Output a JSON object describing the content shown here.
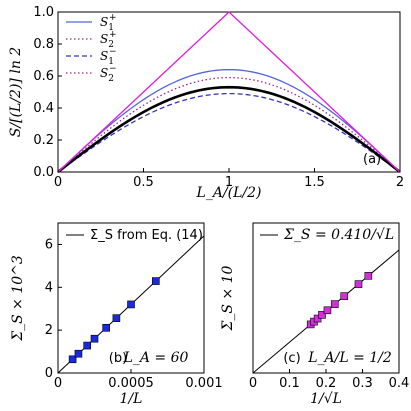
{
  "chart_data": [
    {
      "type": "line",
      "panel_label": "(a)",
      "xlabel": "L_A/(L/2)",
      "ylabel": "S/[(L/2)] ln 2",
      "xlim": [
        0,
        2
      ],
      "ylim": [
        0,
        1
      ],
      "xticks": [
        "0",
        "0.5",
        "1",
        "1.5",
        "2"
      ],
      "yticks": [
        "0.0",
        "0.2",
        "0.4",
        "0.6",
        "0.8",
        "1.0"
      ],
      "legend_position": "top-left",
      "colors": {
        "triangle": "#e020e0",
        "blue": "#5566dd",
        "purple": "#a0208a",
        "black": "#000000"
      },
      "series": [
        {
          "name": "S1+",
          "style": "solid",
          "color": "#5566dd",
          "peak": 0.64
        },
        {
          "name": "S2+",
          "style": "dotted",
          "color": "#a0208a",
          "peak": 0.59
        },
        {
          "name": "S1−",
          "style": "dashed",
          "color": "#3333bb",
          "peak": 0.49
        },
        {
          "name": "S2−",
          "style": "dotted",
          "color": "#a0208a",
          "peak": 0.53
        },
        {
          "name": "",
          "style": "solid-thick",
          "color": "#000000",
          "peak": 0.53
        },
        {
          "name": "",
          "style": "solid",
          "color": "#e020e0",
          "peak": 1.0
        }
      ],
      "legend": [
        {
          "base": "S",
          "sub": "1",
          "sup": "+",
          "style": "solid",
          "color": "#5566dd"
        },
        {
          "base": "S",
          "sub": "2",
          "sup": "+",
          "style": "dotted",
          "color": "#a0208a"
        },
        {
          "base": "S",
          "sub": "1",
          "sup": "−",
          "style": "dashed",
          "color": "#3333bb"
        },
        {
          "base": "S",
          "sub": "2",
          "sup": "−",
          "style": "dotted",
          "color": "#a0208a"
        }
      ]
    },
    {
      "type": "scatter",
      "panel_label": "(b)",
      "panel_note": "L_A = 60",
      "xlabel": "1/L",
      "ylabel": "Σ_S × 10^3",
      "xlim": [
        0,
        0.001
      ],
      "ylim": [
        0,
        7
      ],
      "xticks": [
        "0",
        "0.0005",
        "0.001"
      ],
      "yticks": [
        "0",
        "2",
        "4",
        "6"
      ],
      "legend_text": "Σ_S from Eq. (14)",
      "line": {
        "slope": 6400,
        "intercept": 0
      },
      "marker_color": "#1a2ad8",
      "x": [
        0.0001,
        0.00014,
        0.0002,
        0.00025,
        0.00033,
        0.0004,
        0.0005,
        0.00067
      ],
      "y": [
        0.64,
        0.9,
        1.28,
        1.6,
        2.11,
        2.56,
        3.2,
        4.29
      ]
    },
    {
      "type": "scatter",
      "panel_label": "(c)",
      "panel_note": "L_A/L = 1/2",
      "xlabel": "1/√L",
      "ylabel": "Σ_S × 10",
      "xlim": [
        0,
        0.4
      ],
      "ylim": [
        0,
        2
      ],
      "xticks": [
        "0",
        "0.1",
        "0.2",
        "0.3",
        "0.4"
      ],
      "yticks": [],
      "legend_text": "Σ_S = 0.410/√L",
      "line": {
        "slope": 4.1,
        "intercept": 0
      },
      "marker_color": "#d030d8",
      "x": [
        0.158,
        0.167,
        0.177,
        0.189,
        0.204,
        0.224,
        0.25,
        0.289,
        0.316
      ],
      "y": [
        0.648,
        0.685,
        0.726,
        0.775,
        0.836,
        0.918,
        1.025,
        1.185,
        1.296
      ]
    }
  ]
}
